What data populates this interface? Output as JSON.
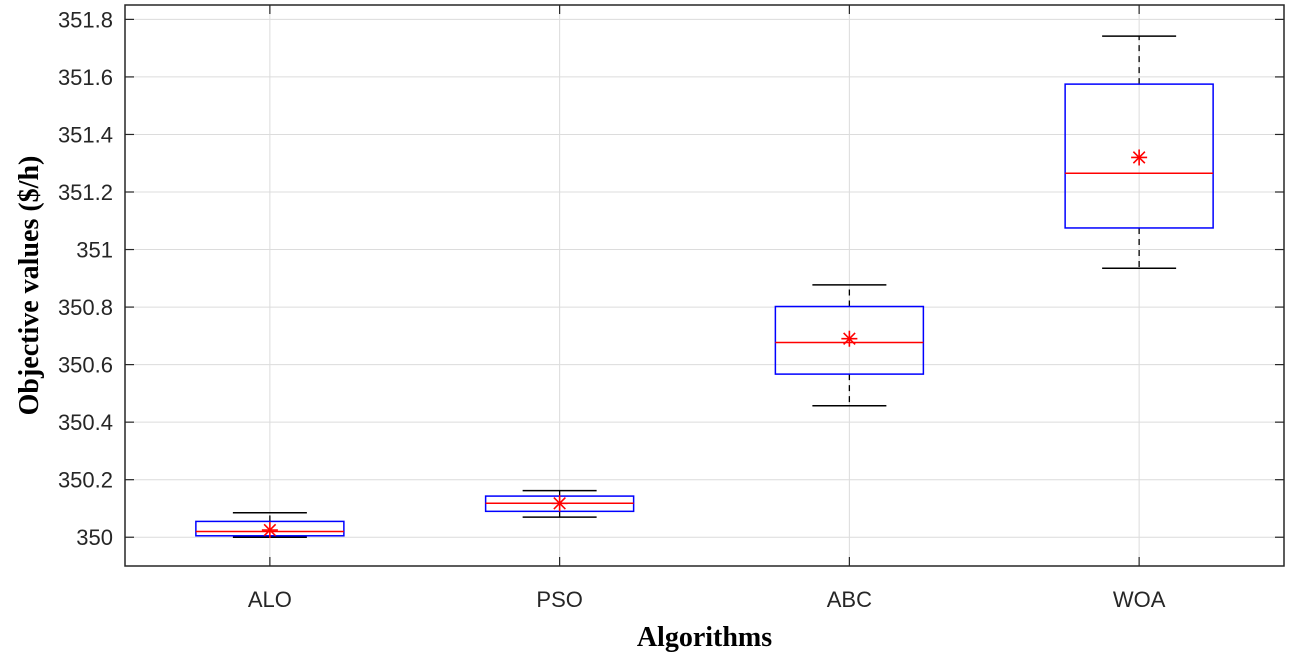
{
  "chart_data": {
    "type": "box",
    "categories": [
      "ALO",
      "PSO",
      "ABC",
      "WOA"
    ],
    "boxes": [
      {
        "name": "ALO",
        "whisker_low": 350.0,
        "q1": 350.005,
        "median": 350.02,
        "q3": 350.055,
        "whisker_high": 350.085,
        "mean": 350.025
      },
      {
        "name": "PSO",
        "whisker_low": 350.07,
        "q1": 350.09,
        "median": 350.118,
        "q3": 350.143,
        "whisker_high": 350.162,
        "mean": 350.118
      },
      {
        "name": "ABC",
        "whisker_low": 350.457,
        "q1": 350.567,
        "median": 350.677,
        "q3": 350.802,
        "whisker_high": 350.877,
        "mean": 350.69
      },
      {
        "name": "WOA",
        "whisker_low": 350.935,
        "q1": 351.075,
        "median": 351.265,
        "q3": 351.575,
        "whisker_high": 351.742,
        "mean": 351.32
      }
    ],
    "xlabel": "Algorithms",
    "ylabel": "Objective values ($/h)",
    "ylim": [
      349.9,
      351.85
    ],
    "yticks": [
      350,
      350.2,
      350.4,
      350.6,
      350.8,
      351,
      351.2,
      351.4,
      351.6,
      351.8
    ],
    "ytick_labels": [
      "350",
      "350.2",
      "350.4",
      "350.6",
      "350.8",
      "351",
      "351.2",
      "351.4",
      "351.6",
      "351.8"
    ],
    "grid": true,
    "colors": {
      "box": "#0000ff",
      "median": "#ff0000",
      "mean_marker": "#ff0000",
      "whisker": "#000000",
      "grid": "#dcdcdc",
      "axes": "#262626"
    }
  }
}
